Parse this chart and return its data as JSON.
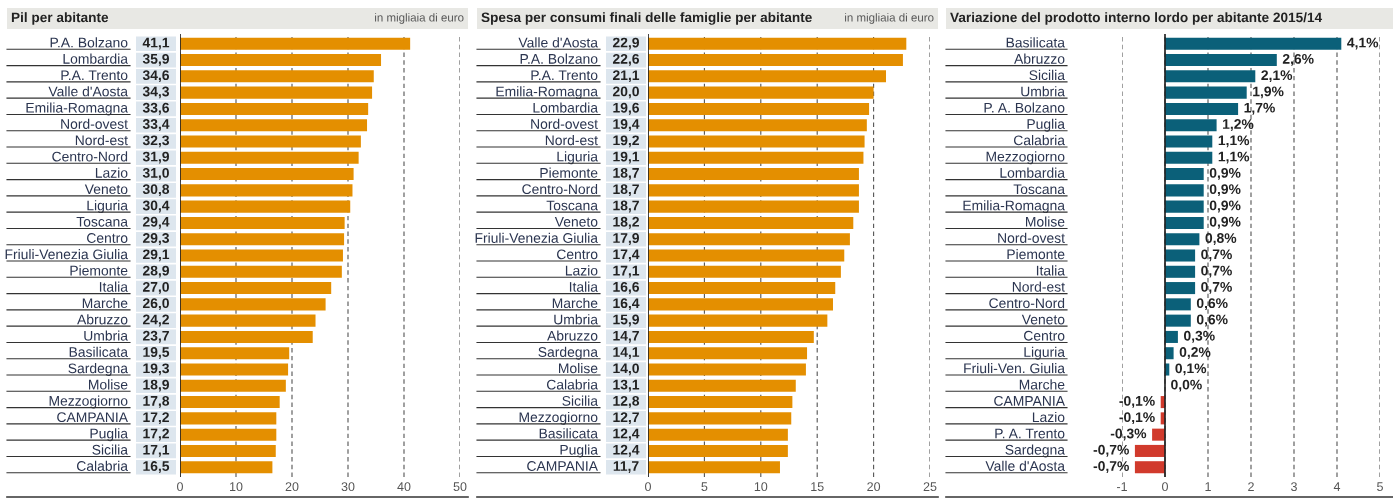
{
  "chart_data": [
    {
      "type": "bar",
      "orientation": "horizontal",
      "title": "Pil per abitante",
      "subtitle": "in migliaia di euro",
      "categories": [
        "P.A. Bolzano",
        "Lombardia",
        "P.A. Trento",
        "Valle d'Aosta",
        "Emilia-Romagna",
        "Nord-ovest",
        "Nord-est",
        "Centro-Nord",
        "Lazio",
        "Veneto",
        "Liguria",
        "Toscana",
        "Centro",
        "Friuli-Venezia Giulia",
        "Piemonte",
        "Italia",
        "Marche",
        "Abruzzo",
        "Umbria",
        "Basilicata",
        "Sardegna",
        "Molise",
        "Mezzogiorno",
        "CAMPANIA",
        "Puglia",
        "Sicilia",
        "Calabria"
      ],
      "values": [
        41.1,
        35.9,
        34.6,
        34.3,
        33.6,
        33.4,
        32.3,
        31.9,
        31.0,
        30.8,
        30.4,
        29.4,
        29.3,
        29.1,
        28.9,
        27.0,
        26.0,
        24.2,
        23.7,
        19.5,
        19.3,
        18.9,
        17.8,
        17.2,
        17.2,
        17.1,
        16.5
      ],
      "value_labels": [
        "41,1",
        "35,9",
        "34,6",
        "34,3",
        "33,6",
        "33,4",
        "32,3",
        "31,9",
        "31,0",
        "30,8",
        "30,4",
        "29,4",
        "29,3",
        "29,1",
        "28,9",
        "27,0",
        "26,0",
        "24,2",
        "23,7",
        "19,5",
        "19,3",
        "18,9",
        "17,8",
        "17,2",
        "17,2",
        "17,1",
        "16,5"
      ],
      "color": "#e48f00",
      "xlim": [
        0,
        50
      ],
      "xticks": [
        0,
        10,
        20,
        30,
        40,
        50
      ],
      "grid": "x"
    },
    {
      "type": "bar",
      "orientation": "horizontal",
      "title": "Spesa per consumi finali delle famiglie per abitante",
      "subtitle": "in migliaia di euro",
      "categories": [
        "Valle d'Aosta",
        "P.A. Bolzano",
        "P.A. Trento",
        "Emilia-Romagna",
        "Lombardia",
        "Nord-ovest",
        "Nord-est",
        "Liguria",
        "Piemonte",
        "Centro-Nord",
        "Toscana",
        "Veneto",
        "Friuli-Venezia Giulia",
        "Centro",
        "Lazio",
        "Italia",
        "Marche",
        "Umbria",
        "Abruzzo",
        "Sardegna",
        "Molise",
        "Calabria",
        "Sicilia",
        "Mezzogiorno",
        "Basilicata",
        "Puglia",
        "CAMPANIA"
      ],
      "values": [
        22.9,
        22.6,
        21.1,
        20.0,
        19.6,
        19.4,
        19.2,
        19.1,
        18.7,
        18.7,
        18.7,
        18.2,
        17.9,
        17.4,
        17.1,
        16.6,
        16.4,
        15.9,
        14.7,
        14.1,
        14.0,
        13.1,
        12.8,
        12.7,
        12.4,
        12.4,
        11.7
      ],
      "value_labels": [
        "22,9",
        "22,6",
        "21,1",
        "20,0",
        "19,6",
        "19,4",
        "19,2",
        "19,1",
        "18,7",
        "18,7",
        "18,7",
        "18,2",
        "17,9",
        "17,4",
        "17,1",
        "16,6",
        "16,4",
        "15,9",
        "14,7",
        "14,1",
        "14,0",
        "13,1",
        "12,8",
        "12,7",
        "12,4",
        "12,4",
        "11,7"
      ],
      "color": "#e48f00",
      "xlim": [
        0,
        25
      ],
      "xticks": [
        0,
        5,
        10,
        15,
        20,
        25
      ],
      "grid": "x"
    },
    {
      "type": "bar",
      "orientation": "horizontal",
      "title": "Variazione del prodotto interno lordo per abitante 2015/14",
      "categories": [
        "Basilicata",
        "Abruzzo",
        "Sicilia",
        "Umbria",
        "P. A. Bolzano",
        "Puglia",
        "Calabria",
        "Mezzogiorno",
        "Lombardia",
        "Toscana",
        "Emilia-Romagna",
        "Molise",
        "Nord-ovest",
        "Piemonte",
        "Italia",
        "Nord-est",
        "Centro-Nord",
        "Veneto",
        "Centro",
        "Liguria",
        "Friuli-Ven. Giulia",
        "Marche",
        "CAMPANIA",
        "Lazio",
        "P. A. Trento",
        "Sardegna",
        "Valle d'Aosta"
      ],
      "values": [
        4.1,
        2.6,
        2.1,
        1.9,
        1.7,
        1.2,
        1.1,
        1.1,
        0.9,
        0.9,
        0.9,
        0.9,
        0.8,
        0.7,
        0.7,
        0.7,
        0.6,
        0.6,
        0.3,
        0.2,
        0.1,
        0.0,
        -0.1,
        -0.1,
        -0.3,
        -0.7,
        -0.7
      ],
      "value_labels": [
        "4,1%",
        "2,6%",
        "2,1%",
        "1,9%",
        "1,7%",
        "1,2%",
        "1,1%",
        "1,1%",
        "0,9%",
        "0,9%",
        "0,9%",
        "0,9%",
        "0,8%",
        "0,7%",
        "0,7%",
        "0,7%",
        "0,6%",
        "0,6%",
        "0,3%",
        "0,2%",
        "0,1%",
        "0,0%",
        "-0,1%",
        "-0,1%",
        "-0,3%",
        "-0,7%",
        "-0,7%"
      ],
      "colors": [
        "#0b6079",
        "#0b6079",
        "#0b6079",
        "#0b6079",
        "#0b6079",
        "#0b6079",
        "#0b6079",
        "#0b6079",
        "#0b6079",
        "#0b6079",
        "#0b6079",
        "#0b6079",
        "#0b6079",
        "#0b6079",
        "#0b6079",
        "#0b6079",
        "#0b6079",
        "#0b6079",
        "#0b6079",
        "#0b6079",
        "#0b6079",
        "#0b6079",
        "#d13a2c",
        "#d13a2c",
        "#d13a2c",
        "#d13a2c",
        "#d13a2c"
      ],
      "xlim": [
        -1,
        5
      ],
      "xticks": [
        {
          "value": -1,
          "label": "-1"
        },
        0,
        1,
        2,
        3,
        4,
        5
      ],
      "grid": "x"
    }
  ]
}
